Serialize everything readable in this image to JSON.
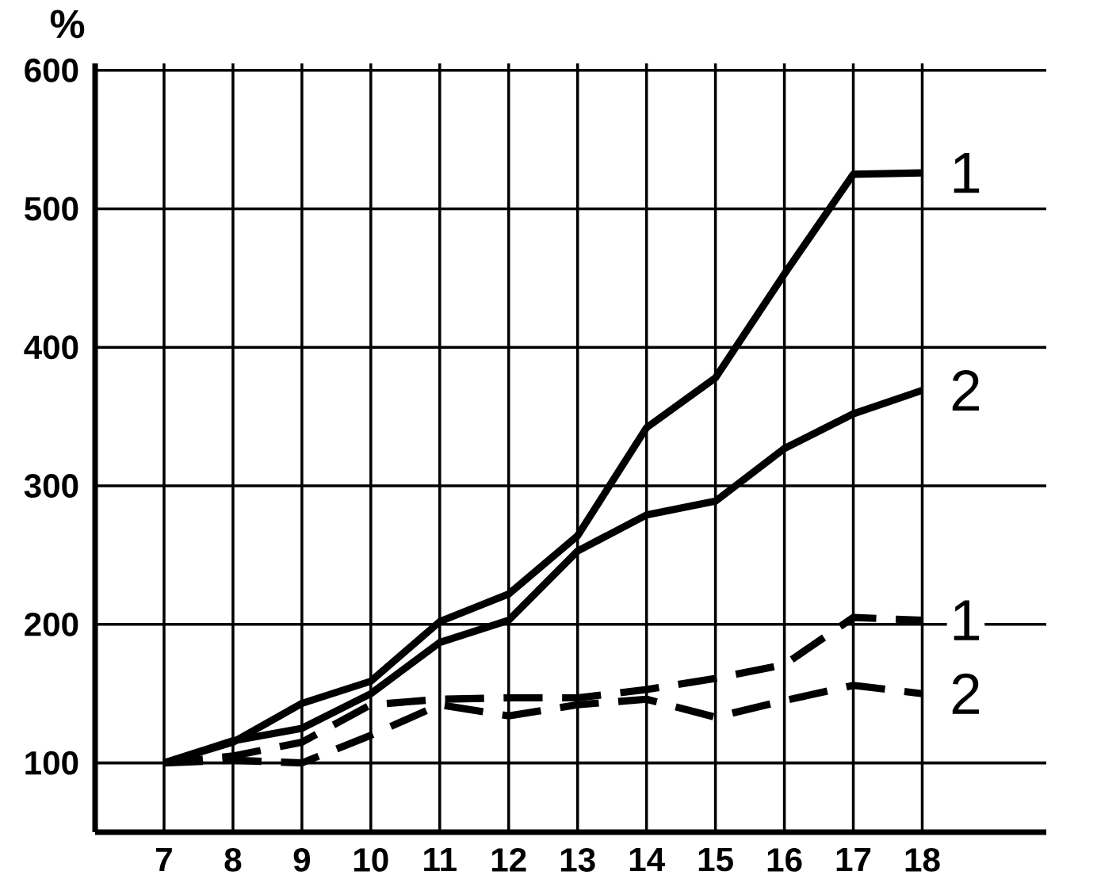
{
  "chart_data": {
    "type": "line",
    "ylabel": "%",
    "xlim": [
      6,
      19.8
    ],
    "ylim": [
      50,
      605
    ],
    "xticks": [
      7,
      8,
      9,
      10,
      11,
      12,
      13,
      14,
      15,
      16,
      17,
      18
    ],
    "yticks": [
      100,
      200,
      300,
      400,
      500,
      600
    ],
    "grid": true,
    "x": [
      7,
      8,
      9,
      10,
      11,
      12,
      13,
      14,
      15,
      16,
      17,
      18
    ],
    "series": [
      {
        "name": "1",
        "color": "#000000",
        "line_style": "solid",
        "values": [
          100,
          115,
          143,
          159,
          202,
          222,
          264,
          342,
          378,
          453,
          525,
          526
        ]
      },
      {
        "name": "2",
        "color": "#000000",
        "line_style": "solid",
        "values": [
          100,
          116,
          125,
          150,
          187,
          203,
          253,
          279,
          289,
          327,
          352,
          369
        ]
      },
      {
        "name": "1",
        "color": "#000000",
        "line_style": "dashed",
        "values": [
          100,
          105,
          115,
          142,
          146,
          147,
          147,
          153,
          161,
          171,
          205,
          203
        ]
      },
      {
        "name": "2",
        "color": "#000000",
        "line_style": "dashed",
        "values": [
          100,
          102,
          100,
          120,
          142,
          134,
          142,
          146,
          133,
          145,
          156,
          150
        ]
      }
    ]
  }
}
